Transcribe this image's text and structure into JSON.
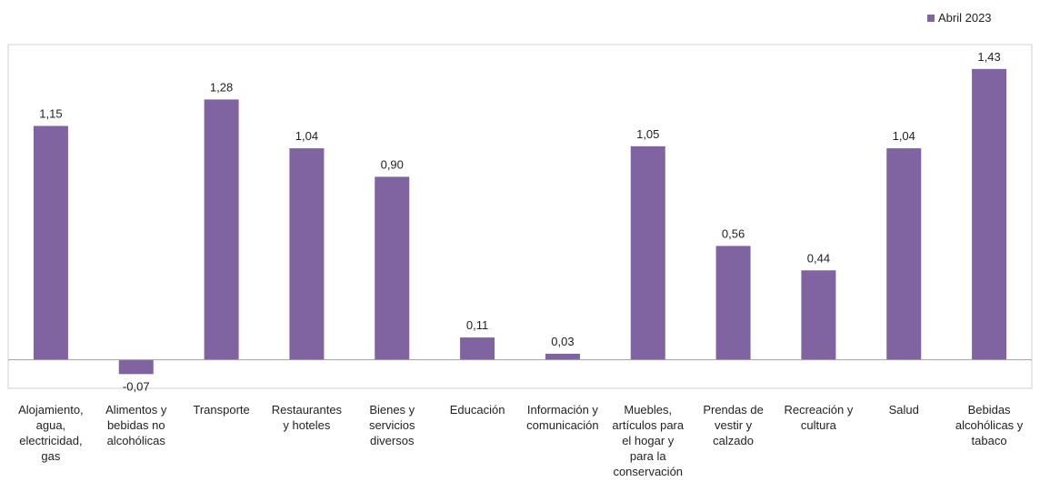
{
  "chart_data": {
    "type": "bar",
    "legend": {
      "label": "Abril 2023",
      "position": "top-right"
    },
    "categories": [
      "Alojamiento,\nagua,\nelectricidad,\ngas",
      "Alimentos y\nbebidas no\nalcohólicas",
      "Transporte",
      "Restaurantes\ny hoteles",
      "Bienes y\nservicios\ndiversos",
      "Educación",
      "Información y\ncomunicación",
      "Muebles,\nartículos para\nel hogar y\npara la\nconservación",
      "Prendas de\nvestir y\ncalzado",
      "Recreación y\ncultura",
      "Salud",
      "Bebidas\nalcohólicas y\ntabaco"
    ],
    "series": [
      {
        "name": "Abril 2023",
        "color": "#8064a2",
        "values": [
          1.15,
          -0.07,
          1.28,
          1.04,
          0.9,
          0.11,
          0.03,
          1.05,
          0.56,
          0.44,
          1.04,
          1.43
        ],
        "labels": [
          "1,15",
          "-0,07",
          "1,28",
          "1,04",
          "0,90",
          "0,11",
          "0,03",
          "1,05",
          "0,56",
          "0,44",
          "1,04",
          "1,43"
        ]
      }
    ],
    "ylim": [
      -0.14,
      1.55
    ],
    "grid": false
  }
}
